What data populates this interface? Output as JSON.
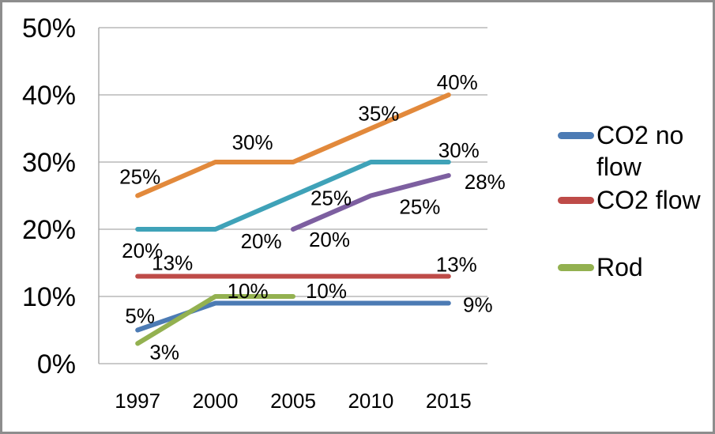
{
  "chart_data": {
    "type": "line",
    "title": "",
    "xlabel": "",
    "ylabel": "",
    "grid": true,
    "legend_position": "right",
    "ylim": [
      0,
      50
    ],
    "yticks": [
      {
        "v": 0,
        "label": "0%"
      },
      {
        "v": 10,
        "label": "10%"
      },
      {
        "v": 20,
        "label": "20%"
      },
      {
        "v": 30,
        "label": "30%"
      },
      {
        "v": 40,
        "label": "40%"
      },
      {
        "v": 50,
        "label": "50%"
      }
    ],
    "categories": [
      "1997",
      "2000",
      "2005",
      "2010",
      "2015"
    ],
    "series": [
      {
        "name": "CO2 no flow",
        "color": "#4C7BB4",
        "values": [
          5,
          9,
          9,
          9,
          9
        ],
        "labels": [
          {
            "i": 0,
            "text": "5%",
            "dx": 3,
            "dy": -18
          },
          {
            "i": 4,
            "text": "9%",
            "dx": 37,
            "dy": 2
          }
        ]
      },
      {
        "name": "CO2 flow",
        "color": "#BE4B48",
        "values": [
          13,
          13,
          13,
          13,
          13
        ],
        "labels": [
          {
            "i": 0,
            "text": "13%",
            "dx": 44,
            "dy": -17
          },
          {
            "i": 4,
            "text": "13%",
            "dx": 10,
            "dy": -15
          }
        ]
      },
      {
        "name": "Rod",
        "color": "#93B150",
        "values": [
          3,
          10,
          10,
          null,
          null
        ],
        "labels": [
          {
            "i": 0,
            "text": "3%",
            "dx": 34,
            "dy": 11
          },
          {
            "i": 1,
            "text": "10%",
            "dx": 41,
            "dy": -7
          },
          {
            "i": 2,
            "text": "10%",
            "dx": 42,
            "dy": -7
          }
        ]
      },
      {
        "name": "",
        "color": "#7D5FA0",
        "values": [
          null,
          null,
          20,
          25,
          28
        ],
        "labels": [
          {
            "i": 2,
            "text": "20%",
            "dx": 46,
            "dy": 13
          },
          {
            "i": 3,
            "text": "25%",
            "dx": 62,
            "dy": 14
          },
          {
            "i": 4,
            "text": "28%",
            "dx": 46,
            "dy": 8
          }
        ]
      },
      {
        "name": "",
        "color": "#3FA2B8",
        "values": [
          20,
          20,
          25,
          30,
          30
        ],
        "labels": [
          {
            "i": 0,
            "text": "20%",
            "dx": 6,
            "dy": 27
          },
          {
            "i": 1,
            "text": "20%",
            "dx": 58,
            "dy": 15
          },
          {
            "i": 2,
            "text": "25%",
            "dx": 48,
            "dy": 3
          },
          {
            "i": 4,
            "text": "30%",
            "dx": 13,
            "dy": -15
          }
        ]
      },
      {
        "name": "",
        "color": "#E2893B",
        "values": [
          25,
          30,
          30,
          35,
          40
        ],
        "labels": [
          {
            "i": 0,
            "text": "25%",
            "dx": 3,
            "dy": -24
          },
          {
            "i": 1,
            "text": "30%",
            "dx": 47,
            "dy": -25
          },
          {
            "i": 3,
            "text": "35%",
            "dx": 10,
            "dy": -19
          },
          {
            "i": 4,
            "text": "40%",
            "dx": 11,
            "dy": -16
          }
        ]
      }
    ]
  },
  "legend": {
    "items": [
      {
        "label": "CO2 no flow",
        "color": "#4C7BB4"
      },
      {
        "label": "CO2 flow",
        "color": "#BE4B48"
      },
      {
        "label": "Rod",
        "color": "#93B150"
      }
    ]
  },
  "colors": {
    "gridline": "#ababab",
    "axis_line": "#a0a0a0",
    "frame_border": "#8d8d8d",
    "text": "#000000"
  }
}
